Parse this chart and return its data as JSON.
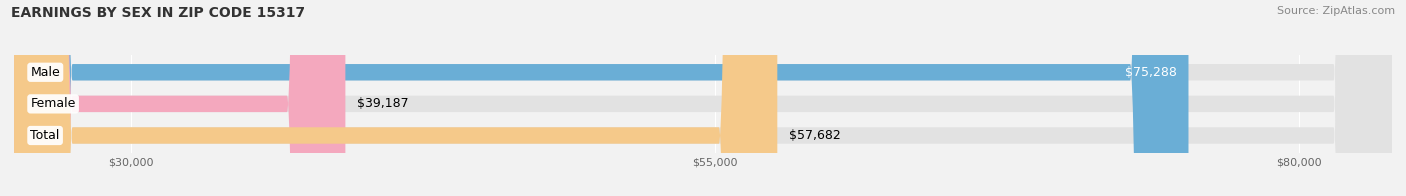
{
  "title": "EARNINGS BY SEX IN ZIP CODE 15317",
  "source": "Source: ZipAtlas.com",
  "categories": [
    "Male",
    "Female",
    "Total"
  ],
  "values": [
    75288,
    39187,
    57682
  ],
  "bar_colors": [
    "#6aaed6",
    "#f4a8be",
    "#f5c98a"
  ],
  "value_labels": [
    "$75,288",
    "$39,187",
    "$57,682"
  ],
  "value_label_colors": [
    "white",
    "black",
    "black"
  ],
  "value_label_inside": [
    true,
    false,
    false
  ],
  "tick_labels": [
    "$30,000",
    "$55,000",
    "$80,000"
  ],
  "tick_values": [
    30000,
    55000,
    80000
  ],
  "xmin": 25000,
  "xmax": 84000,
  "bar_height": 0.52,
  "figsize": [
    14.06,
    1.96
  ],
  "dpi": 100,
  "bg_color": "#f2f2f2",
  "bar_bg_color": "#e2e2e2",
  "title_fontsize": 10,
  "source_fontsize": 8,
  "label_fontsize": 9,
  "value_fontsize": 9,
  "tick_fontsize": 8
}
